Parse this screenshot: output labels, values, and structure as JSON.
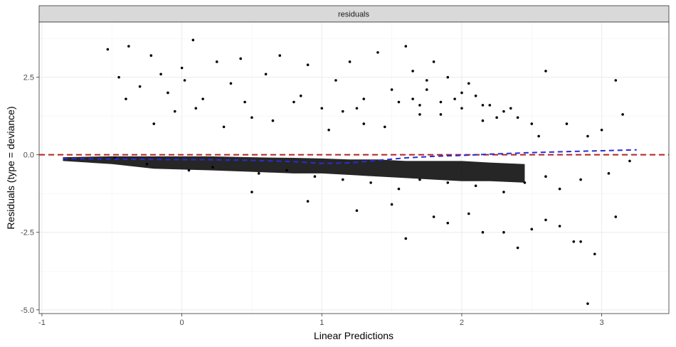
{
  "chart_data": {
    "type": "scatter",
    "facet_label": "residuals",
    "xlabel": "Linear Predictions",
    "ylabel": "Residuals (type = deviance)",
    "xlim": [
      -1.02,
      3.48
    ],
    "ylim": [
      -5.12,
      4.28
    ],
    "x_ticks": [
      -1,
      0,
      1,
      2,
      3
    ],
    "x_tick_labels": [
      "-1",
      "0",
      "1",
      "2",
      "3"
    ],
    "y_ticks": [
      -5,
      -2.5,
      0,
      2.5
    ],
    "y_tick_labels": [
      "-5.0",
      "-2.5",
      "0.0",
      "2.5"
    ],
    "grid": true,
    "reference_line": {
      "y": 0,
      "style": "dashed",
      "color": "#b22222"
    },
    "smooth_line": {
      "style": "dashed",
      "color": "#2b2bd6",
      "x": [
        -0.85,
        -0.5,
        -0.2,
        0.2,
        0.5,
        0.8,
        1.0,
        1.2,
        1.4,
        1.6,
        1.8,
        2.0,
        2.2,
        2.5,
        2.8,
        3.0,
        3.25
      ],
      "y": [
        -0.12,
        -0.14,
        -0.15,
        -0.16,
        -0.18,
        -0.22,
        -0.28,
        -0.26,
        -0.18,
        -0.1,
        -0.05,
        -0.02,
        0.02,
        0.07,
        0.11,
        0.13,
        0.16
      ]
    },
    "points": {
      "color": "#000000",
      "x": [
        -0.53,
        -0.45,
        -0.38,
        -0.3,
        -0.22,
        -0.15,
        -0.1,
        -0.05,
        0.02,
        0.08,
        0.15,
        0.25,
        0.35,
        0.42,
        0.5,
        0.6,
        0.7,
        0.8,
        0.9,
        1.0,
        1.1,
        1.2,
        1.3,
        1.4,
        1.5,
        1.6,
        1.65,
        1.7,
        1.75,
        1.8,
        1.85,
        1.9,
        2.0,
        2.05,
        2.1,
        2.2,
        2.3,
        2.4,
        2.5,
        2.6,
        2.75,
        2.9,
        3.0,
        3.1,
        3.15,
        -0.4,
        -0.2,
        0.0,
        0.1,
        0.3,
        0.45,
        0.65,
        0.85,
        1.05,
        1.25,
        1.45,
        1.55,
        1.7,
        1.95,
        2.15,
        2.35,
        2.55,
        1.65,
        1.75,
        1.85,
        2.0,
        2.15,
        2.25,
        1.3,
        1.15,
        -0.48,
        -0.25,
        0.05,
        0.22,
        0.55,
        0.75,
        0.95,
        1.15,
        1.35,
        1.55,
        1.7,
        1.9,
        2.1,
        2.3,
        2.45,
        2.6,
        2.7,
        2.85,
        3.05,
        3.2,
        0.5,
        0.9,
        1.25,
        1.5,
        1.8,
        2.05,
        2.3,
        2.5,
        2.7,
        2.85,
        2.95,
        3.1,
        1.6,
        1.9,
        2.15,
        2.4,
        2.6,
        2.8,
        2.9
      ],
      "y": [
        3.4,
        2.5,
        3.5,
        2.2,
        3.2,
        2.6,
        2.0,
        1.4,
        2.4,
        3.7,
        1.8,
        3.0,
        2.3,
        3.1,
        1.2,
        2.6,
        3.2,
        1.7,
        2.9,
        1.5,
        2.4,
        3.0,
        1.8,
        3.3,
        2.1,
        3.5,
        2.7,
        1.6,
        2.4,
        3.0,
        1.7,
        2.5,
        1.5,
        2.3,
        1.9,
        1.6,
        1.4,
        1.2,
        1.0,
        2.7,
        1.0,
        0.6,
        0.8,
        2.4,
        1.3,
        1.8,
        1.0,
        2.8,
        1.5,
        0.9,
        1.7,
        1.1,
        1.9,
        0.8,
        1.5,
        0.9,
        1.7,
        1.3,
        1.8,
        1.1,
        1.5,
        0.6,
        1.8,
        2.1,
        1.3,
        2.0,
        1.6,
        1.2,
        1.0,
        1.4,
        -0.1,
        -0.3,
        -0.5,
        -0.4,
        -0.6,
        -0.5,
        -0.7,
        -0.8,
        -0.9,
        -1.1,
        -0.8,
        -0.9,
        -1.0,
        -1.2,
        -0.9,
        -0.7,
        -1.1,
        -0.8,
        -0.6,
        -0.2,
        -1.2,
        -1.5,
        -1.8,
        -1.6,
        -2.0,
        -1.9,
        -2.5,
        -2.4,
        -2.3,
        -2.8,
        -3.2,
        -2.0,
        -2.7,
        -2.2,
        -2.5,
        -3.0,
        -2.1,
        -2.8,
        -4.8
      ]
    },
    "dense_band": {
      "x": [
        -0.85,
        -0.5,
        -0.2,
        0.2,
        0.5,
        0.8,
        1.0,
        1.2,
        1.4,
        1.6,
        1.8,
        2.0,
        2.2,
        2.45
      ],
      "y_lower": [
        -0.2,
        -0.3,
        -0.45,
        -0.5,
        -0.55,
        -0.6,
        -0.6,
        -0.65,
        -0.7,
        -0.75,
        -0.8,
        -0.85,
        -0.85,
        -0.9
      ],
      "y_upper": [
        -0.08,
        -0.05,
        -0.05,
        -0.05,
        -0.08,
        -0.1,
        -0.12,
        -0.15,
        -0.15,
        -0.2,
        -0.2,
        -0.2,
        -0.25,
        -0.3
      ]
    }
  }
}
